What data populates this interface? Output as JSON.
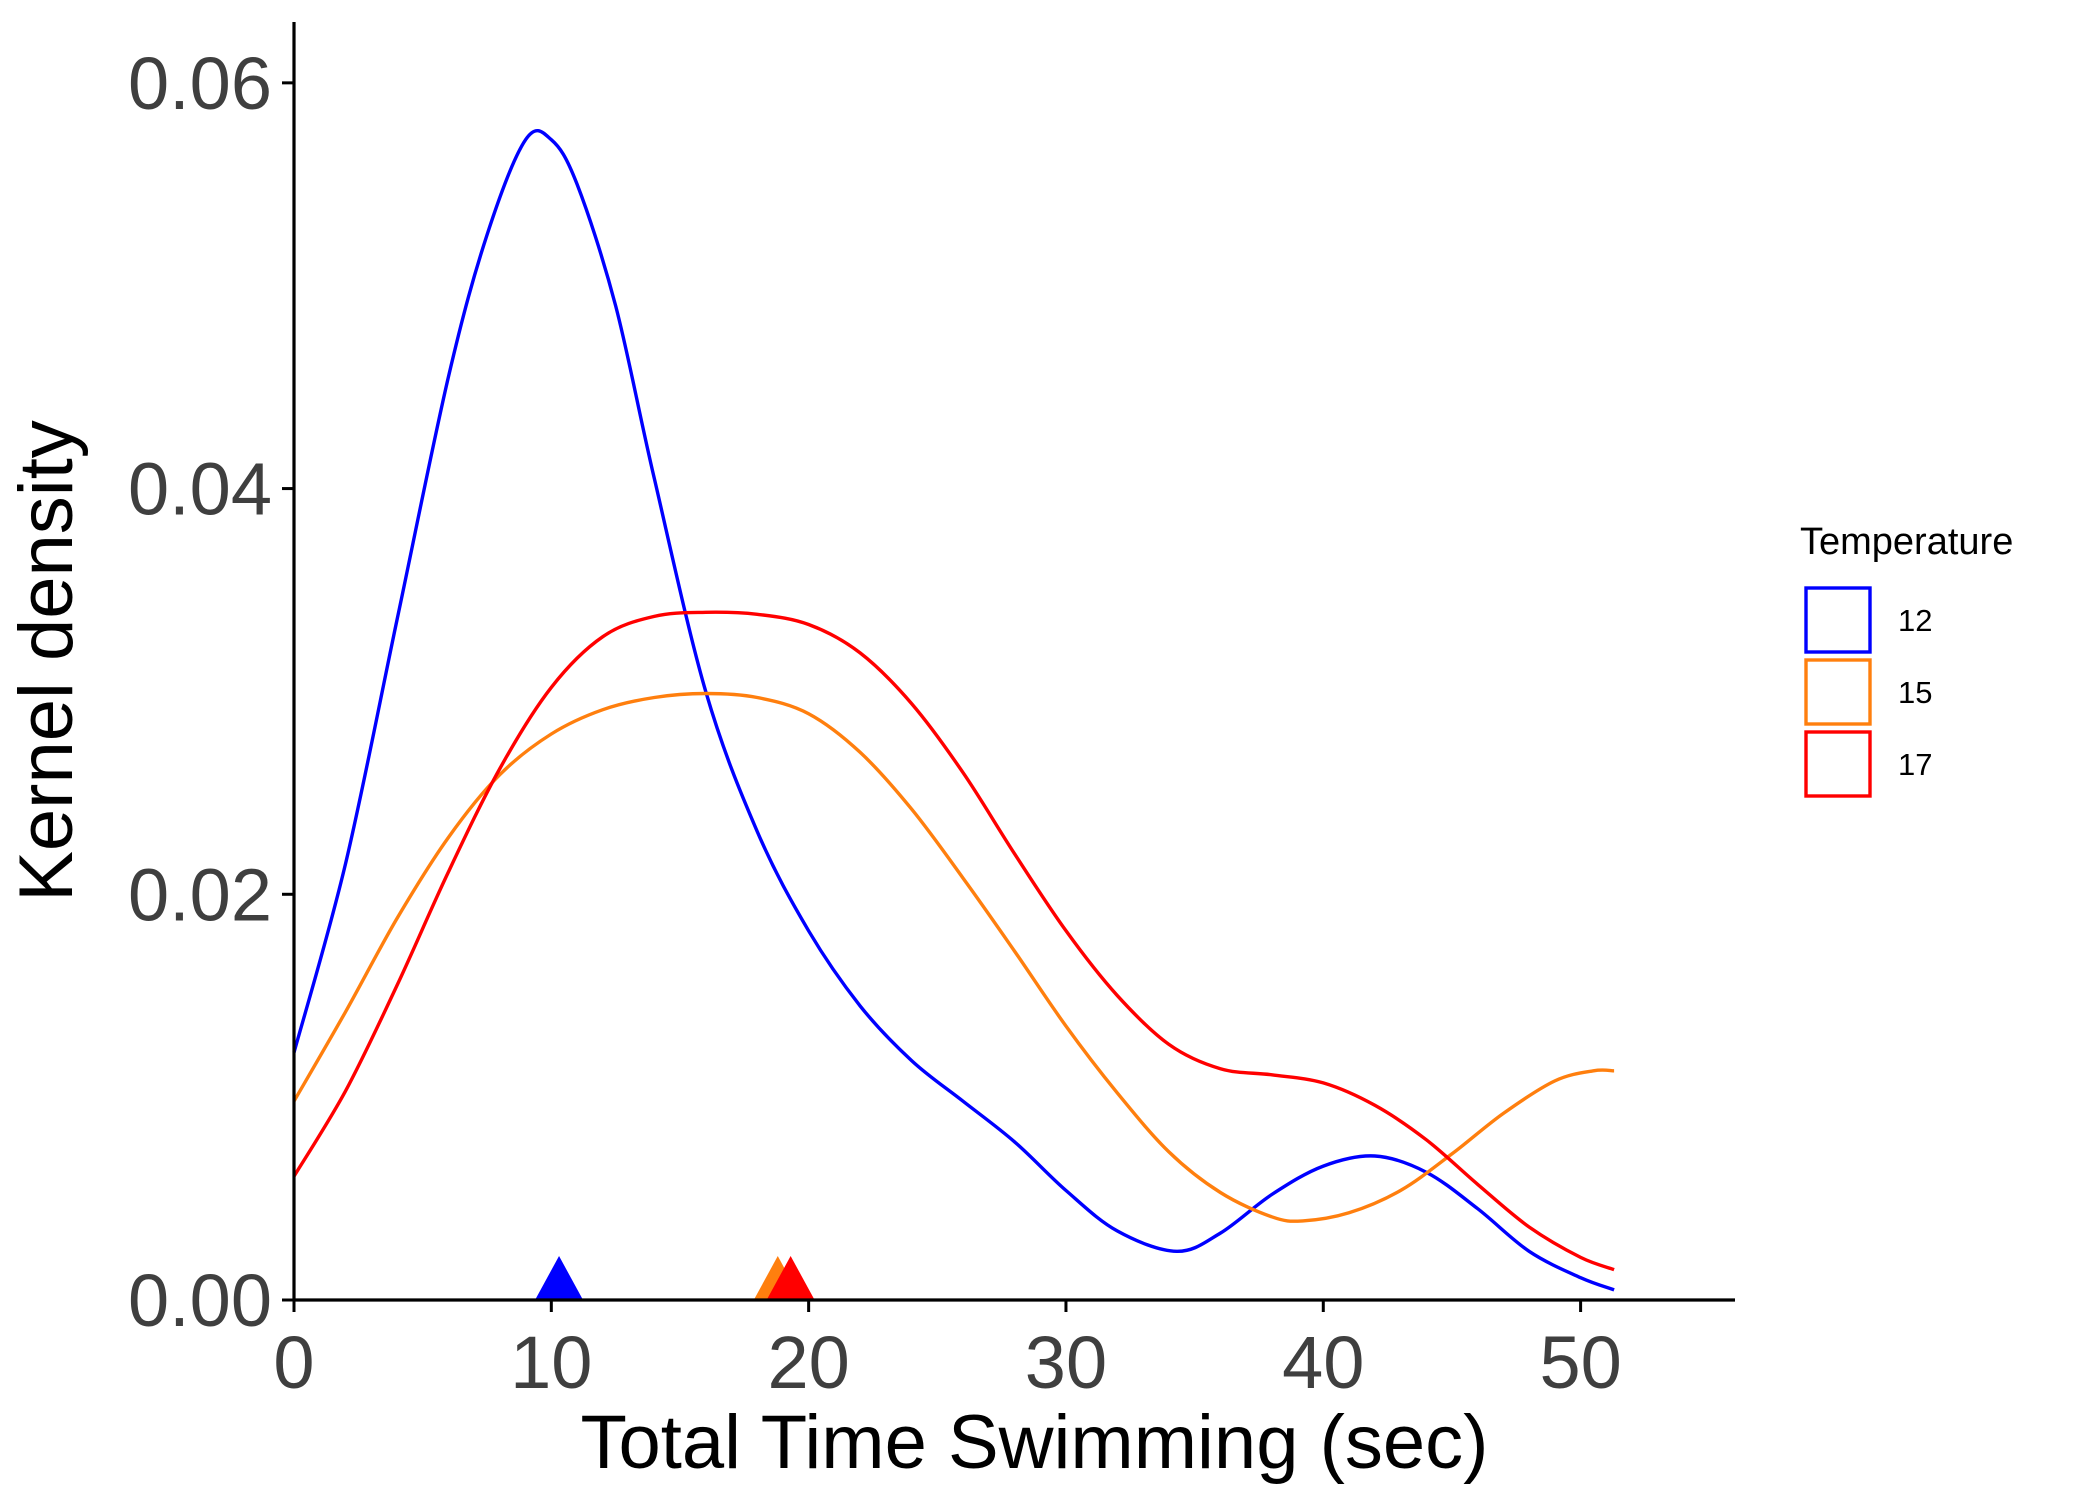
{
  "chart_data": {
    "type": "line",
    "subtype": "kernel density",
    "xlabel": "Total Time Swimming (sec)",
    "ylabel": "Kernel density",
    "xlim": [
      0,
      56
    ],
    "ylim": [
      0,
      0.063
    ],
    "xticks": [
      0,
      10,
      20,
      30,
      40,
      50
    ],
    "xtick_labels": [
      "0",
      "10",
      "20",
      "30",
      "40",
      "50"
    ],
    "yticks": [
      0,
      0.02,
      0.04,
      0.06
    ],
    "ytick_labels": [
      "0.00",
      "0.02",
      "0.04",
      "0.06"
    ],
    "grid": false,
    "legend": {
      "title": "Temperature",
      "placement": "right"
    },
    "series": [
      {
        "name": "12",
        "color": "#0000ff",
        "mean_marker": 10.3,
        "points": [
          [
            0,
            0.0122
          ],
          [
            2,
            0.0215
          ],
          [
            4,
            0.0335
          ],
          [
            6,
            0.0455
          ],
          [
            7.5,
            0.0525
          ],
          [
            9,
            0.0572
          ],
          [
            10,
            0.0572
          ],
          [
            11,
            0.055
          ],
          [
            12.5,
            0.049
          ],
          [
            14,
            0.0405
          ],
          [
            16,
            0.03
          ],
          [
            18,
            0.0231
          ],
          [
            20,
            0.0182
          ],
          [
            22,
            0.0145
          ],
          [
            24,
            0.0118
          ],
          [
            26,
            0.0098
          ],
          [
            28,
            0.0078
          ],
          [
            30,
            0.0054
          ],
          [
            32,
            0.0034
          ],
          [
            34.3,
            0.0024
          ],
          [
            36,
            0.0033
          ],
          [
            38,
            0.0052
          ],
          [
            40,
            0.0066
          ],
          [
            42,
            0.0071
          ],
          [
            44,
            0.0063
          ],
          [
            46,
            0.0045
          ],
          [
            48,
            0.0024
          ],
          [
            50,
            0.0011
          ],
          [
            51.3,
            0.0005
          ]
        ]
      },
      {
        "name": "15",
        "color": "#ff7f0e",
        "mean_marker": 18.8,
        "points": [
          [
            0,
            0.0098
          ],
          [
            2,
            0.0142
          ],
          [
            4,
            0.0188
          ],
          [
            6,
            0.0228
          ],
          [
            8,
            0.0259
          ],
          [
            10,
            0.0279
          ],
          [
            12,
            0.0291
          ],
          [
            14,
            0.0297
          ],
          [
            16,
            0.0299
          ],
          [
            18,
            0.0297
          ],
          [
            20,
            0.0289
          ],
          [
            22,
            0.027
          ],
          [
            24,
            0.0242
          ],
          [
            26,
            0.0208
          ],
          [
            28,
            0.0172
          ],
          [
            30,
            0.0135
          ],
          [
            32,
            0.0102
          ],
          [
            34,
            0.0073
          ],
          [
            36,
            0.0053
          ],
          [
            38,
            0.0041
          ],
          [
            39.2,
            0.0039
          ],
          [
            41,
            0.0043
          ],
          [
            43,
            0.0054
          ],
          [
            45,
            0.0072
          ],
          [
            47,
            0.0092
          ],
          [
            49,
            0.0108
          ],
          [
            50.5,
            0.0113
          ],
          [
            51.3,
            0.0113
          ]
        ]
      },
      {
        "name": "17",
        "color": "#ff0000",
        "mean_marker": 19.3,
        "points": [
          [
            0,
            0.0061
          ],
          [
            2,
            0.0103
          ],
          [
            4,
            0.0155
          ],
          [
            6,
            0.0211
          ],
          [
            8,
            0.0262
          ],
          [
            10,
            0.0302
          ],
          [
            12,
            0.0327
          ],
          [
            14,
            0.0337
          ],
          [
            16,
            0.0339
          ],
          [
            18,
            0.0338
          ],
          [
            20,
            0.0333
          ],
          [
            22,
            0.0319
          ],
          [
            24,
            0.0294
          ],
          [
            26,
            0.026
          ],
          [
            28,
            0.022
          ],
          [
            30,
            0.0182
          ],
          [
            32,
            0.015
          ],
          [
            34,
            0.0126
          ],
          [
            36,
            0.0114
          ],
          [
            38,
            0.0111
          ],
          [
            40,
            0.0107
          ],
          [
            42,
            0.0096
          ],
          [
            44,
            0.0079
          ],
          [
            46,
            0.0057
          ],
          [
            48,
            0.0036
          ],
          [
            50,
            0.0021
          ],
          [
            51.3,
            0.0015
          ]
        ]
      }
    ]
  }
}
